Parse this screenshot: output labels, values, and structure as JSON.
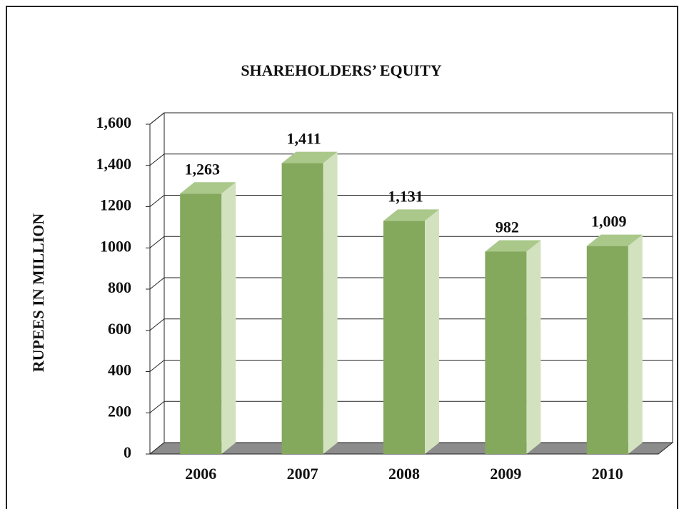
{
  "chart_data": {
    "type": "bar3d",
    "title": "SHAREHOLDERS’ EQUITY",
    "y_label": "RUPEES IN MILLION",
    "categories": [
      "2006",
      "2007",
      "2008",
      "2009",
      "2010"
    ],
    "values": [
      1263,
      1411,
      1131,
      982,
      1009
    ],
    "value_labels": [
      "1,263",
      "1,411",
      "1,131",
      "982",
      "1,009"
    ],
    "color": "#84a85c",
    "ylim": [
      0,
      1600
    ],
    "yticks": [
      0,
      200,
      400,
      600,
      800,
      1000,
      1200,
      {
        "value": 1400,
        "label": "1,400"
      },
      {
        "value": 1600,
        "label": "1,600"
      }
    ],
    "grid": true
  }
}
